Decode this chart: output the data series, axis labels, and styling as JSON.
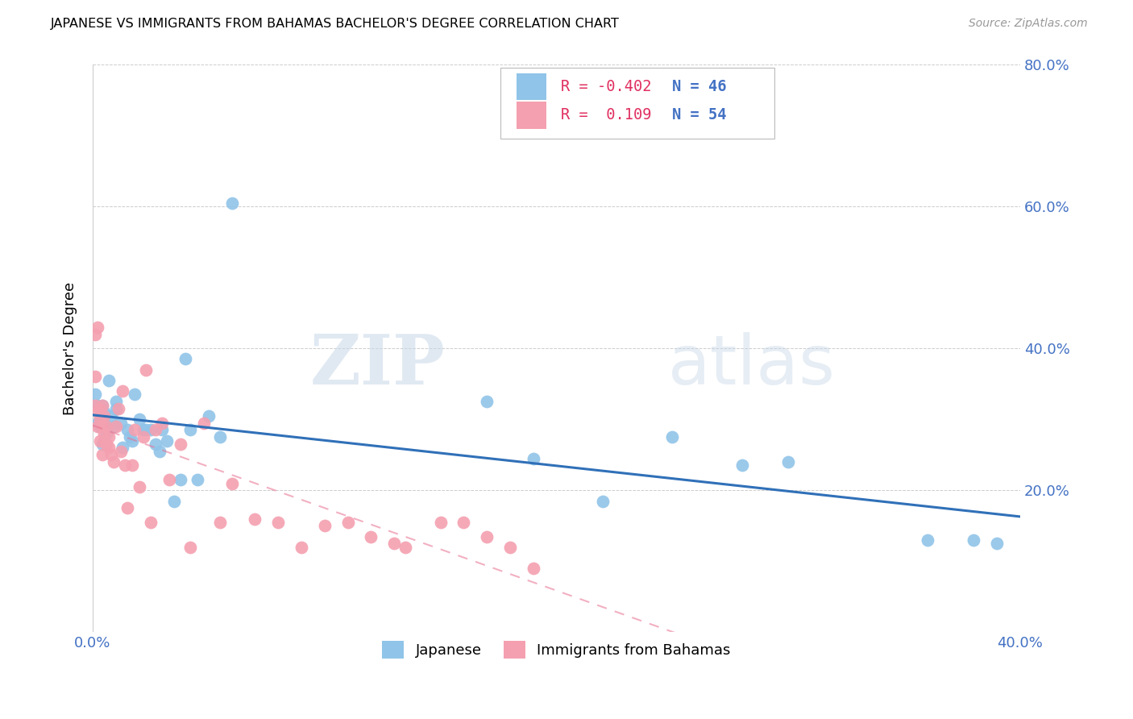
{
  "title": "JAPANESE VS IMMIGRANTS FROM BAHAMAS BACHELOR'S DEGREE CORRELATION CHART",
  "source": "Source: ZipAtlas.com",
  "ylabel": "Bachelor's Degree",
  "xlim": [
    0.0,
    0.4
  ],
  "ylim": [
    0.0,
    0.8
  ],
  "xticks": [
    0.0,
    0.4
  ],
  "yticks": [
    0.0,
    0.2,
    0.4,
    0.6,
    0.8
  ],
  "xtick_labels": [
    "0.0%",
    "40.0%"
  ],
  "ytick_labels_left": [
    "",
    "",
    "",
    "",
    ""
  ],
  "ytick_labels_right": [
    "",
    "20.0%",
    "40.0%",
    "60.0%",
    "80.0%"
  ],
  "legend_label1": "Japanese",
  "legend_label2": "Immigrants from Bahamas",
  "R1": -0.402,
  "N1": 46,
  "R2": 0.109,
  "N2": 54,
  "color_blue": "#90c4e8",
  "color_pink": "#f4a0b0",
  "color_blue_line": "#3070b8",
  "color_pink_line": "#e87090",
  "color_axis_labels": "#4472C4",
  "watermark_zip": "ZIP",
  "watermark_atlas": "atlas",
  "japanese_x": [
    0.001,
    0.002,
    0.002,
    0.003,
    0.003,
    0.004,
    0.004,
    0.005,
    0.005,
    0.006,
    0.007,
    0.008,
    0.009,
    0.01,
    0.01,
    0.012,
    0.013,
    0.015,
    0.016,
    0.017,
    0.018,
    0.02,
    0.022,
    0.023,
    0.025,
    0.027,
    0.029,
    0.03,
    0.032,
    0.035,
    0.038,
    0.04,
    0.042,
    0.045,
    0.05,
    0.055,
    0.06,
    0.17,
    0.19,
    0.22,
    0.25,
    0.28,
    0.3,
    0.36,
    0.38,
    0.39
  ],
  "japanese_y": [
    0.335,
    0.32,
    0.295,
    0.3,
    0.29,
    0.32,
    0.265,
    0.31,
    0.295,
    0.28,
    0.355,
    0.305,
    0.29,
    0.315,
    0.325,
    0.295,
    0.26,
    0.285,
    0.275,
    0.27,
    0.335,
    0.3,
    0.285,
    0.285,
    0.285,
    0.265,
    0.255,
    0.285,
    0.27,
    0.185,
    0.215,
    0.385,
    0.285,
    0.215,
    0.305,
    0.275,
    0.605,
    0.325,
    0.245,
    0.185,
    0.275,
    0.235,
    0.24,
    0.13,
    0.13,
    0.125
  ],
  "bahamas_x": [
    0.001,
    0.001,
    0.001,
    0.002,
    0.002,
    0.002,
    0.003,
    0.003,
    0.003,
    0.004,
    0.004,
    0.004,
    0.005,
    0.005,
    0.005,
    0.006,
    0.006,
    0.007,
    0.007,
    0.008,
    0.009,
    0.01,
    0.011,
    0.012,
    0.013,
    0.014,
    0.015,
    0.017,
    0.018,
    0.02,
    0.022,
    0.023,
    0.025,
    0.027,
    0.03,
    0.033,
    0.038,
    0.042,
    0.048,
    0.055,
    0.06,
    0.07,
    0.08,
    0.09,
    0.1,
    0.11,
    0.12,
    0.13,
    0.135,
    0.15,
    0.16,
    0.17,
    0.18,
    0.19
  ],
  "bahamas_y": [
    0.42,
    0.36,
    0.32,
    0.31,
    0.29,
    0.43,
    0.27,
    0.3,
    0.315,
    0.25,
    0.29,
    0.32,
    0.28,
    0.27,
    0.305,
    0.265,
    0.29,
    0.26,
    0.275,
    0.25,
    0.24,
    0.29,
    0.315,
    0.255,
    0.34,
    0.235,
    0.175,
    0.235,
    0.285,
    0.205,
    0.275,
    0.37,
    0.155,
    0.285,
    0.295,
    0.215,
    0.265,
    0.12,
    0.295,
    0.155,
    0.21,
    0.16,
    0.155,
    0.12,
    0.15,
    0.155,
    0.135,
    0.125,
    0.12,
    0.155,
    0.155,
    0.135,
    0.12,
    0.09
  ],
  "grid_color": "#cccccc",
  "grid_style": "--"
}
